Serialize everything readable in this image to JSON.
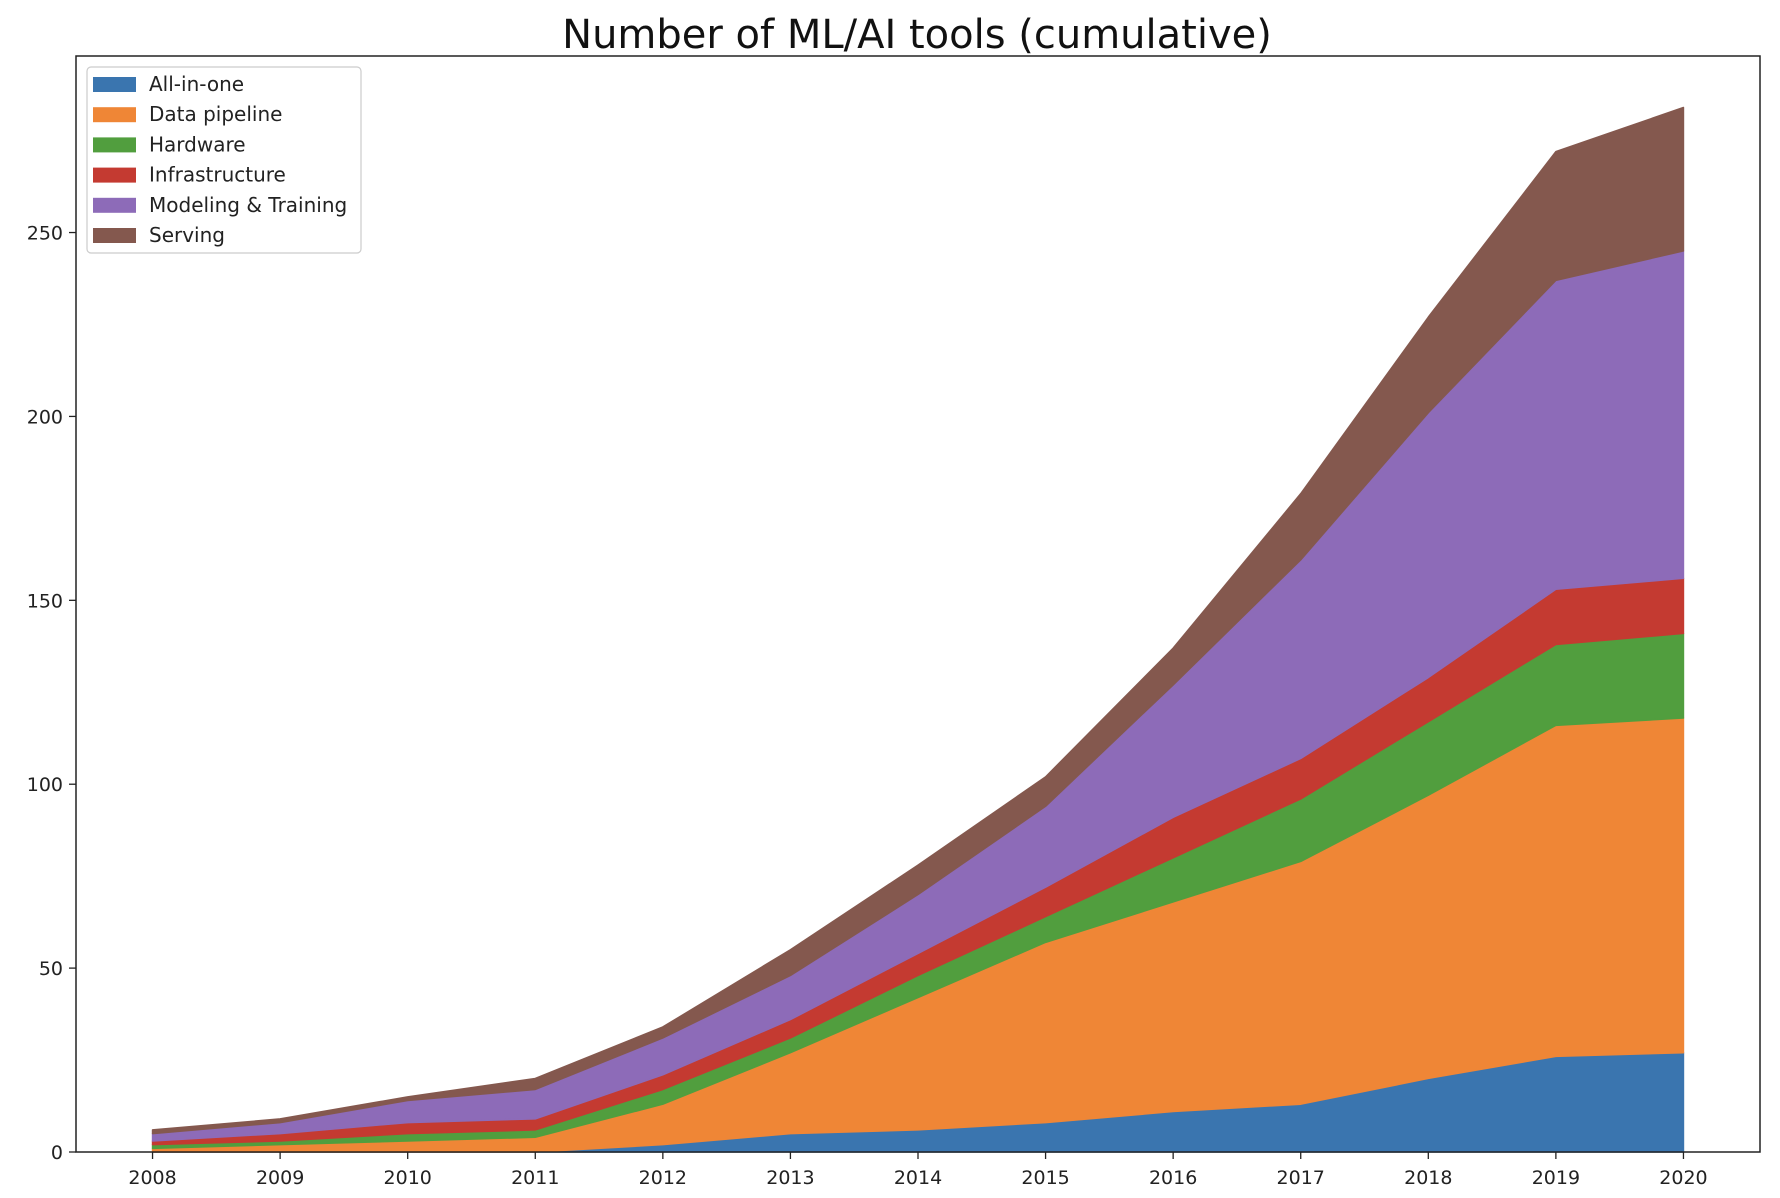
{
  "chart_data": {
    "type": "area",
    "stacked": true,
    "title": "Number of ML/AI tools (cumulative)",
    "xlabel": "",
    "ylabel": "",
    "x": [
      "2008",
      "2009",
      "2010",
      "2011",
      "2012",
      "2013",
      "2014",
      "2015",
      "2016",
      "2017",
      "2018",
      "2019",
      "2020"
    ],
    "xlim": [
      2007.4,
      2020.6
    ],
    "ylim": [
      0,
      298
    ],
    "yticks": [
      0,
      50,
      100,
      150,
      200,
      250
    ],
    "grid": false,
    "legend_position": "top-left",
    "series": [
      {
        "name": "All-in-one",
        "color": "#3a75af",
        "values": [
          0,
          0,
          0,
          0,
          2,
          5,
          6,
          8,
          11,
          13,
          20,
          26,
          27
        ]
      },
      {
        "name": "Data pipeline",
        "color": "#ef8636",
        "values": [
          1,
          2,
          3,
          4,
          11,
          22,
          36,
          49,
          57,
          66,
          77,
          90,
          91
        ]
      },
      {
        "name": "Hardware",
        "color": "#519e3e",
        "values": [
          1,
          1,
          2,
          2,
          4,
          4,
          6,
          7,
          12,
          17,
          20,
          22,
          23
        ]
      },
      {
        "name": "Infrastructure",
        "color": "#c43a31",
        "values": [
          1,
          2,
          3,
          3,
          4,
          5,
          6,
          8,
          11,
          11,
          12,
          15,
          15
        ]
      },
      {
        "name": "Modeling & Training",
        "color": "#8d6bb8",
        "values": [
          2,
          3,
          6,
          8,
          10,
          12,
          16,
          22,
          36,
          54,
          72,
          84,
          89
        ]
      },
      {
        "name": "Serving",
        "color": "#84584e",
        "values": [
          1,
          1,
          1,
          3,
          3,
          7,
          8,
          8,
          10,
          18,
          26,
          35,
          39
        ]
      }
    ]
  }
}
